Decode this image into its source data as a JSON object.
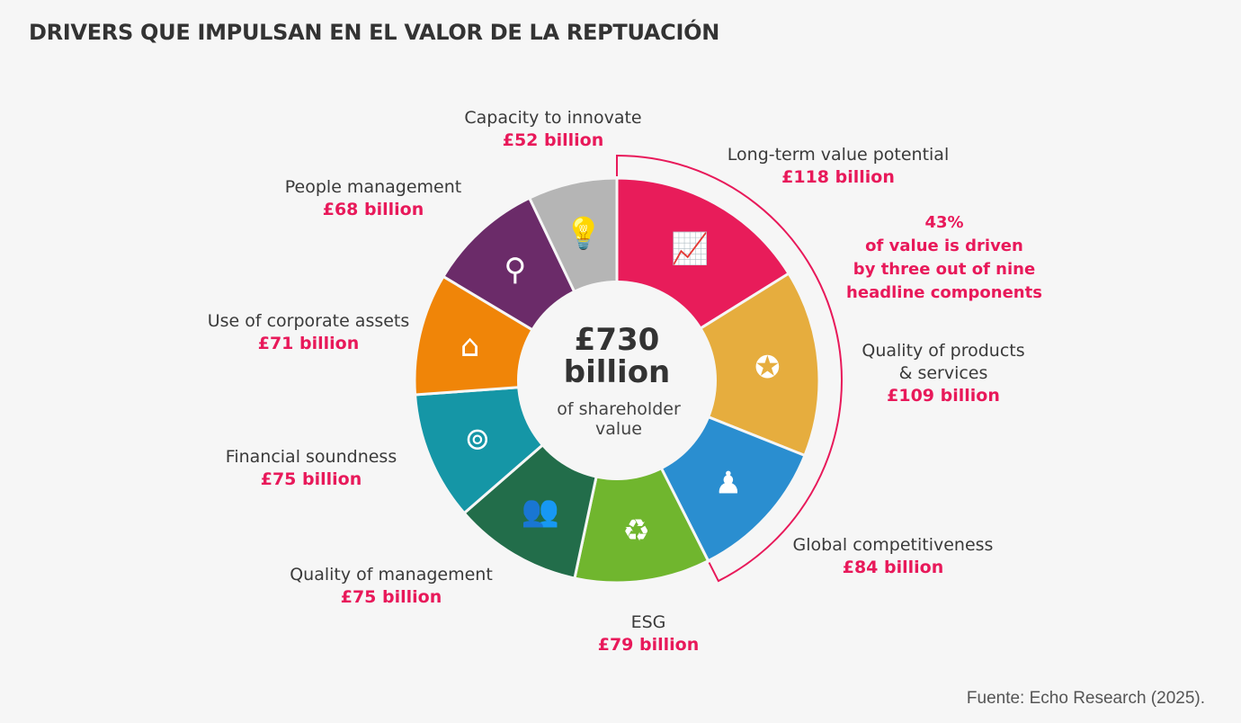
{
  "title": "DRIVERS QUE IMPULSAN EN EL VALOR DE LA REPTUACIÓN",
  "source": "Fuente: Echo Research (2025).",
  "chart_data": {
    "type": "pie",
    "variant": "donut",
    "title": "DRIVERS QUE IMPULSAN EN EL VALOR DE LA REPTUACIÓN",
    "unit": "£ billion",
    "center": {
      "value": "£730",
      "unit": "billion",
      "caption1": "of shareholder",
      "caption2": "value"
    },
    "slices": [
      {
        "label": "Long-term value potential",
        "value": 118,
        "value_label": "£118 billion",
        "color": "#e81c5a",
        "icon": "growth-chart-icon"
      },
      {
        "label": "Quality of products & services",
        "label1": "Quality of products",
        "label2": "& services",
        "value": 109,
        "value_label": "£109 billion",
        "color": "#e6ad3e",
        "icon": "quality-badge-icon"
      },
      {
        "label": "Global competitiveness",
        "value": 84,
        "value_label": "£84 billion",
        "color": "#2a8ed0",
        "icon": "globe-chess-icon"
      },
      {
        "label": "ESG",
        "value": 79,
        "value_label": "£79 billion",
        "color": "#70b62e",
        "icon": "sustainability-cycle-icon"
      },
      {
        "label": "Quality of management",
        "value": 75,
        "value_label": "£75 billion",
        "color": "#226d4a",
        "icon": "org-chart-icon"
      },
      {
        "label": "Financial soundness",
        "value": 75,
        "value_label": "£75 billion",
        "color": "#1596a6",
        "icon": "safe-icon"
      },
      {
        "label": "Use of corporate assets",
        "value": 71,
        "value_label": "£71 billion",
        "color": "#f08508",
        "icon": "warehouse-icon"
      },
      {
        "label": "People management",
        "value": 68,
        "value_label": "£68 billion",
        "color": "#6b2b69",
        "icon": "search-person-icon"
      },
      {
        "label": "Capacity to innovate",
        "value": 52,
        "value_label": "£52 billion",
        "color": "#b5b5b5",
        "icon": "lightbulb-icon"
      }
    ],
    "annotation": {
      "lines": [
        "43%",
        "of value is driven",
        "by three out of nine",
        "headline components"
      ],
      "color": "#e8195a",
      "spans_slices": 3
    }
  }
}
